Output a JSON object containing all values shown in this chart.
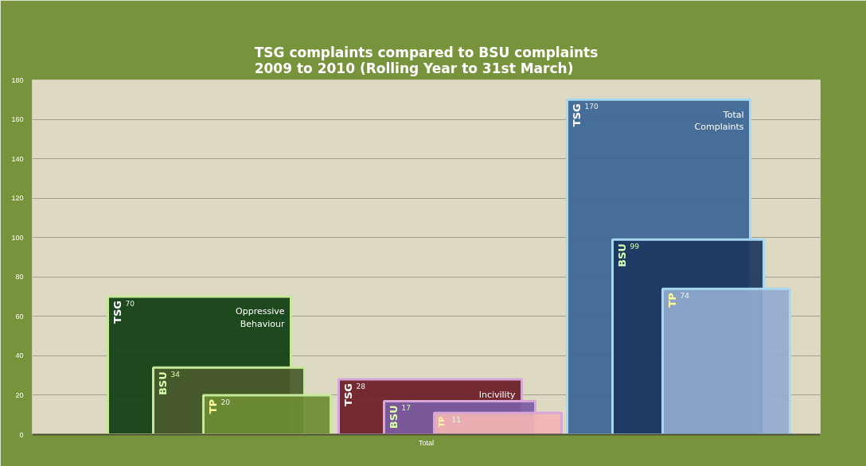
{
  "chart_data": {
    "type": "bar",
    "title": "TSG complaints compared to BSU complaints\n2009 to 2010 (Rolling Year to 31st March)",
    "xlabel": "Total",
    "categories": [
      "Oppressive Behaviour",
      "Incivility",
      "Total Complaints"
    ],
    "series": [
      {
        "name": "TSG",
        "colors": [
          "#0d3d10",
          "#6a1b25",
          "#3a6596"
        ],
        "values": [
          70,
          28,
          170
        ]
      },
      {
        "name": "BSU",
        "colors": [
          "#4a5b2c",
          "#7b5ca3",
          "#1b3660"
        ],
        "values": [
          34,
          17,
          99
        ]
      },
      {
        "name": "TP",
        "colors": [
          "#6e8c33",
          "#f2b4b4",
          "#93abd0"
        ],
        "values": [
          20,
          11,
          74
        ]
      }
    ],
    "ylim": [
      0,
      180
    ],
    "yticks": [
      0,
      20,
      40,
      60,
      80,
      100,
      120,
      140,
      160,
      180
    ],
    "grid": "y",
    "data_labels": true
  }
}
